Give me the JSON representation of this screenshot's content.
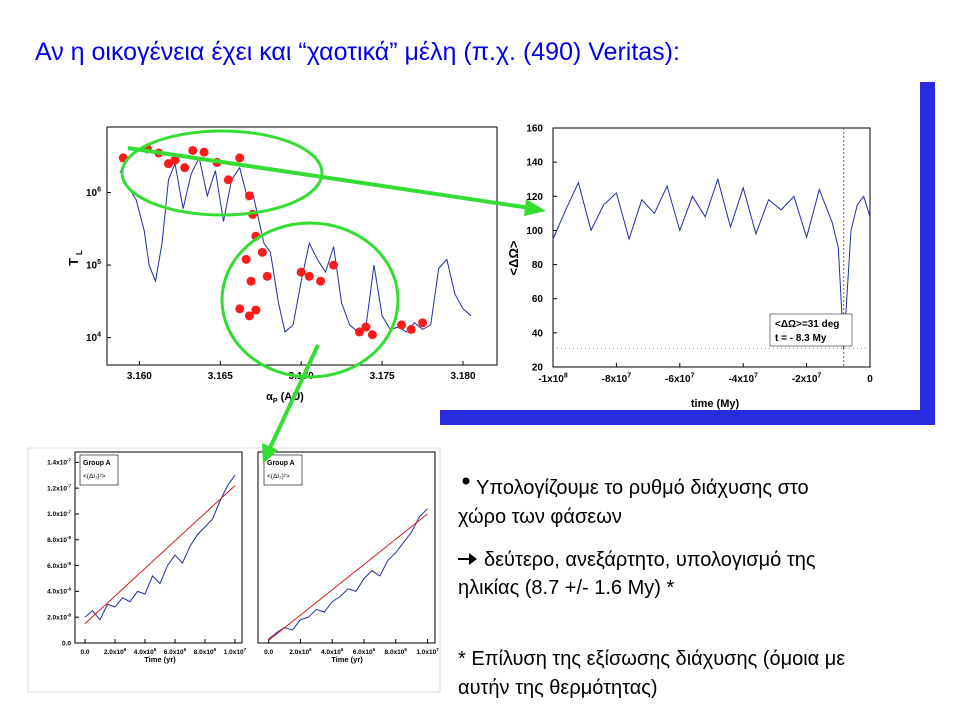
{
  "title": "Αν η οικογένεια έχει και “χαοτικά” μέλη (π.χ. (490) Veritas):",
  "bullets": [
    {
      "lines": [
        "Υπολογίζουμε το ρυθμό διάχυσης στο",
        "χώρο των φάσεων"
      ]
    },
    {
      "lines": [
        "δεύτερο, ανεξάρτητο, υπολογισμό της",
        "ηλικίας (8.7 +/- 1.6 My) *"
      ]
    }
  ],
  "footnote": {
    "lines": [
      "* Επίλυση της εξίσωσης διάχυσης (όμοια με",
      "αυτήν της θερμότητας)"
    ]
  },
  "chart_data": [
    {
      "type": "line",
      "xlabel": "α",
      "xlabel_sub": "P",
      "xlabel_unit": "(AU)",
      "ylabel": "T",
      "ylabel_sub": "L",
      "xlim": [
        3.158,
        3.1821
      ],
      "ylim": [
        4200,
        8000000
      ],
      "ylog": true,
      "xticks": [
        {
          "value": 3.16,
          "label": "3.160"
        },
        {
          "value": 3.165,
          "label": "3.165"
        },
        {
          "value": 3.17,
          "label": "3.170"
        },
        {
          "value": 3.175,
          "label": "3.175"
        },
        {
          "value": 3.18,
          "label": "3.180"
        }
      ],
      "yticks": [
        {
          "value": 10000,
          "label": "10",
          "exp": "4"
        },
        {
          "value": 100000,
          "label": "10",
          "exp": "5"
        },
        {
          "value": 1000000,
          "label": "10",
          "exp": "6"
        }
      ],
      "series": [
        {
          "style": "line",
          "color": "#1f2f9f",
          "x": [
            3.1588,
            3.1593,
            3.1598,
            3.1603,
            3.1606,
            3.161,
            3.1614,
            3.1618,
            3.1622,
            3.1627,
            3.1632,
            3.1637,
            3.1642,
            3.1647,
            3.1652,
            3.1657,
            3.1662,
            3.1667,
            3.167,
            3.1673,
            3.1677,
            3.1681,
            3.1686,
            3.169,
            3.1695,
            3.17,
            3.1705,
            3.171,
            3.1715,
            3.172,
            3.1725,
            3.173,
            3.1735,
            3.174,
            3.1745,
            3.175,
            3.1755,
            3.176,
            3.1765,
            3.177,
            3.1775,
            3.178,
            3.1785,
            3.179,
            3.1795,
            3.18,
            3.1805
          ],
          "values": [
            2000000,
            1200000,
            800000,
            300000,
            100000,
            60000,
            200000,
            1500000,
            2500000,
            600000,
            1800000,
            3000000,
            900000,
            2000000,
            400000,
            1500000,
            2200000,
            800000,
            1000000,
            500000,
            200000,
            150000,
            30000,
            12000,
            15000,
            60000,
            200000,
            120000,
            80000,
            180000,
            30000,
            15000,
            12000,
            14000,
            100000,
            20000,
            13000,
            14000,
            12000,
            16000,
            13000,
            15000,
            90000,
            120000,
            40000,
            25000,
            20000
          ]
        },
        {
          "style": "scatter",
          "color": "#ff1a1a",
          "x": [
            3.159,
            3.1605,
            3.1612,
            3.1618,
            3.1622,
            3.1628,
            3.1633,
            3.164,
            3.1648,
            3.1655,
            3.1662,
            3.1668,
            3.167,
            3.1672,
            3.1666,
            3.1669,
            3.1676,
            3.1679,
            3.1662,
            3.1668,
            3.1672,
            3.17,
            3.1705,
            3.1712,
            3.172,
            3.1736,
            3.174,
            3.1744,
            3.1762,
            3.1768,
            3.1775
          ],
          "values": [
            3000000,
            4000000,
            3500000,
            2500000,
            2800000,
            2200000,
            3800000,
            3600000,
            2600000,
            1500000,
            3000000,
            900000,
            500000,
            250000,
            120000,
            60000,
            150000,
            70000,
            25000,
            20000,
            24000,
            80000,
            70000,
            60000,
            100000,
            12000,
            14000,
            11000,
            15000,
            13000,
            16000
          ]
        }
      ]
    },
    {
      "type": "line",
      "xlabel": "time (My)",
      "ylabel": "<ΔΩ>",
      "xlim": [
        -100000000,
        0
      ],
      "ylim": [
        20,
        160
      ],
      "xticks": [
        {
          "value": -100000000,
          "label": "-1x10",
          "exp": "8"
        },
        {
          "value": -80000000,
          "label": "-8x10",
          "exp": "7"
        },
        {
          "value": -60000000,
          "label": "-6x10",
          "exp": "7"
        },
        {
          "value": -40000000,
          "label": "-4x10",
          "exp": "7"
        },
        {
          "value": -20000000,
          "label": "-2x10",
          "exp": "7"
        },
        0
      ],
      "yticks": [
        20,
        40,
        60,
        80,
        100,
        120,
        140,
        160
      ],
      "vline": -8300000,
      "hline": 31,
      "annotations": [
        "<ΔΩ>=31 deg",
        "t = - 8.3 My"
      ],
      "series": [
        {
          "style": "line",
          "color": "#1f2f9f",
          "x": [
            -100000000,
            -96000000,
            -92000000,
            -88000000,
            -84000000,
            -80000000,
            -76000000,
            -72000000,
            -68000000,
            -64000000,
            -60000000,
            -56000000,
            -52000000,
            -48000000,
            -44000000,
            -40000000,
            -36000000,
            -32000000,
            -28000000,
            -24000000,
            -20000000,
            -16000000,
            -12000000,
            -10000000,
            -8300000,
            -6000000,
            -4000000,
            -2000000,
            0
          ],
          "values": [
            95,
            112,
            128,
            100,
            115,
            122,
            95,
            118,
            110,
            126,
            100,
            120,
            108,
            130,
            102,
            125,
            98,
            118,
            112,
            120,
            96,
            124,
            105,
            90,
            31,
            100,
            115,
            120,
            108
          ]
        }
      ]
    },
    {
      "type": "line",
      "xlabel": "Time (yr)",
      "legend_title": "Group A",
      "xlim": [
        -670000,
        10470000
      ],
      "ylim": [
        0,
        1.48e-07
      ],
      "xticks": [
        {
          "value": 0,
          "label": "0.0"
        },
        {
          "value": 2000000,
          "label": "2.0x10",
          "exp": "6"
        },
        {
          "value": 4000000,
          "label": "4.0x10",
          "exp": "6"
        },
        {
          "value": 6000000,
          "label": "6.0x10",
          "exp": "6"
        },
        {
          "value": 8000000,
          "label": "8.0x10",
          "exp": "6"
        },
        {
          "value": 10000000,
          "label": "1.0x10",
          "exp": "7"
        }
      ],
      "yticks": [
        {
          "value": 0,
          "label": "0.0"
        },
        {
          "value": 2e-08,
          "label": "2.0x10",
          "exp": "-8"
        },
        {
          "value": 4e-08,
          "label": "4.0x10",
          "exp": "-8"
        },
        {
          "value": 6e-08,
          "label": "6.0x10",
          "exp": "-8"
        },
        {
          "value": 8e-08,
          "label": "8.0x10",
          "exp": "-8"
        },
        {
          "value": 1e-07,
          "label": "1.0x10",
          "exp": "-7"
        },
        {
          "value": 1.2e-07,
          "label": "1.2x10",
          "exp": "-7"
        },
        {
          "value": 1.4e-07,
          "label": "1.4x10",
          "exp": "-7"
        }
      ],
      "series": [
        {
          "style": "line",
          "name": "<(ΔI₁)²>",
          "color": "#1f2f9f",
          "x": [
            0,
            500000,
            1000000,
            1500000,
            2000000,
            2500000,
            3000000,
            3500000,
            4000000,
            4500000,
            5000000,
            5500000,
            6000000,
            6500000,
            7000000,
            7500000,
            8000000,
            8500000,
            9000000,
            9500000,
            10000000
          ],
          "values": [
            2e-08,
            2.5e-08,
            1.8e-08,
            3e-08,
            2.8e-08,
            3.5e-08,
            3.2e-08,
            4e-08,
            3.8e-08,
            5.2e-08,
            4.6e-08,
            6e-08,
            6.8e-08,
            6.2e-08,
            7.5e-08,
            8.4e-08,
            9e-08,
            9.6e-08,
            1.1e-07,
            1.22e-07,
            1.3e-07
          ]
        },
        {
          "style": "line",
          "color": "#d02020",
          "x": [
            0,
            10000000
          ],
          "values": [
            1.5e-08,
            1.22e-07
          ]
        }
      ]
    },
    {
      "type": "line",
      "xlabel": "Time (yr)",
      "legend_title": "Group A",
      "xlim": [
        -670000,
        10470000
      ],
      "ylim": [
        0,
        1.48e-07
      ],
      "xticks": [
        {
          "value": 0,
          "label": "0.0"
        },
        {
          "value": 2000000,
          "label": "2.0x10",
          "exp": "6"
        },
        {
          "value": 4000000,
          "label": "4.0x10",
          "exp": "6"
        },
        {
          "value": 6000000,
          "label": "6.0x10",
          "exp": "6"
        },
        {
          "value": 8000000,
          "label": "8.0x10",
          "exp": "6"
        },
        {
          "value": 10000000,
          "label": "1.0x10",
          "exp": "7"
        }
      ],
      "series": [
        {
          "style": "line",
          "name": "<(ΔI₂)²>",
          "color": "#1f2f9f",
          "x": [
            0,
            500000,
            1000000,
            1500000,
            2000000,
            2500000,
            3000000,
            3500000,
            4000000,
            4500000,
            5000000,
            5500000,
            6000000,
            6500000,
            7000000,
            7500000,
            8000000,
            8500000,
            9000000,
            9500000,
            10000000
          ],
          "values": [
            3e-09,
            8e-09,
            1.2e-08,
            1e-08,
            1.8e-08,
            2e-08,
            2.6e-08,
            2.4e-08,
            3.2e-08,
            3.6e-08,
            4.2e-08,
            4e-08,
            5e-08,
            5.6e-08,
            5.2e-08,
            6.4e-08,
            7e-08,
            7.8e-08,
            8.6e-08,
            9.8e-08,
            1.04e-07
          ]
        },
        {
          "style": "line",
          "color": "#d02020",
          "x": [
            0,
            10000000
          ],
          "values": [
            2e-09,
            1e-07
          ]
        }
      ]
    }
  ]
}
